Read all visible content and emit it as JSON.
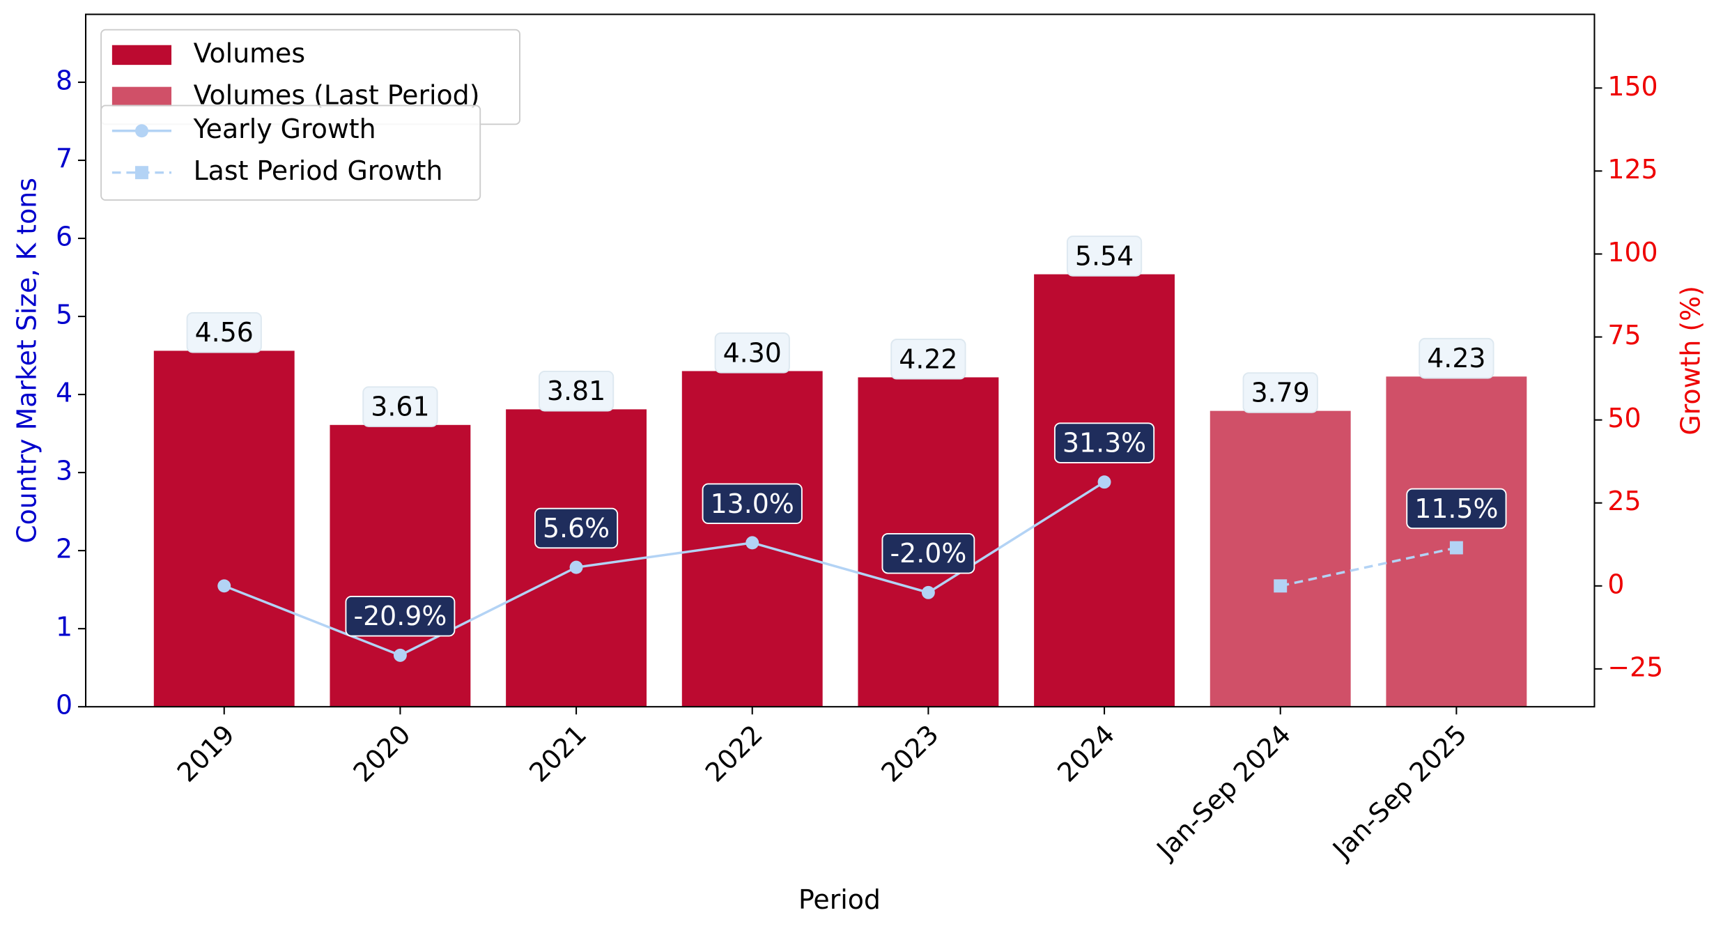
{
  "chart_data": {
    "type": "bar",
    "x_label": "Period",
    "y_label": "Country Market Size, K tons",
    "y2_label": "Growth (%)",
    "categories": [
      "2019",
      "2020",
      "2021",
      "2022",
      "2023",
      "2024",
      "Jan-Sep 2024",
      "Jan-Sep 2025"
    ],
    "series": [
      {
        "name": "Volumes",
        "type": "bar",
        "color": "#bc0a30",
        "values": [
          4.56,
          3.61,
          3.81,
          4.3,
          4.22,
          5.54,
          null,
          null
        ],
        "value_labels": [
          "4.56",
          "3.61",
          "3.81",
          "4.30",
          "4.22",
          "5.54",
          null,
          null
        ]
      },
      {
        "name": "Volumes (Last Period)",
        "type": "bar",
        "color": "#d05068",
        "values": [
          null,
          null,
          null,
          null,
          null,
          null,
          3.79,
          4.23
        ],
        "value_labels": [
          null,
          null,
          null,
          null,
          null,
          null,
          "3.79",
          "4.23"
        ]
      },
      {
        "name": "Yearly Growth",
        "type": "line",
        "axis": "y2",
        "color": "#b3d3f5",
        "marker": "circle",
        "dashed": false,
        "values": [
          0,
          -20.9,
          5.6,
          13.0,
          -2.0,
          31.3,
          null,
          null
        ],
        "value_labels": [
          null,
          "-20.9%",
          "5.6%",
          "13.0%",
          "-2.0%",
          "31.3%",
          null,
          null
        ]
      },
      {
        "name": "Last Period Growth",
        "type": "line",
        "axis": "y2",
        "color": "#b3d3f5",
        "marker": "square",
        "dashed": true,
        "values": [
          null,
          null,
          null,
          null,
          null,
          null,
          0,
          11.5
        ],
        "value_labels": [
          null,
          null,
          null,
          null,
          null,
          null,
          null,
          "11.5%"
        ]
      }
    ],
    "ylim": [
      0,
      8.87
    ],
    "yticks": [
      0,
      1,
      2,
      3,
      4,
      5,
      6,
      7,
      8
    ],
    "y2lim": [
      -36.4,
      172.2
    ],
    "y2ticks": [
      {
        "value": -25,
        "label": "−25"
      },
      0,
      25,
      50,
      75,
      100,
      125,
      150
    ],
    "y_color": "#0000cc",
    "y2_color": "#ee0000",
    "legend": "upper left",
    "grid": false
  }
}
